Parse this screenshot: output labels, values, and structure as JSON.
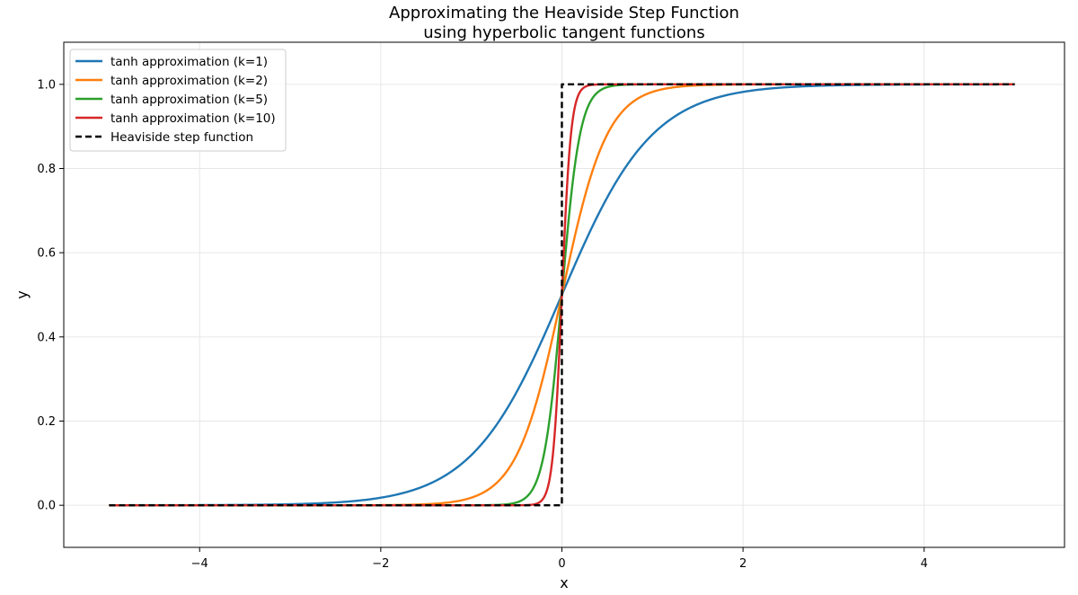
{
  "chart_data": {
    "type": "line",
    "title": [
      "Approximating the Heaviside Step Function",
      "using hyperbolic tangent functions"
    ],
    "xlabel": "x",
    "ylabel": "y",
    "xlim": [
      -5.5,
      5.55
    ],
    "ylim": [
      -0.1,
      1.1
    ],
    "x_range": [
      -5,
      5
    ],
    "xticks": [
      -4,
      -2,
      0,
      2,
      4
    ],
    "xtick_labels": [
      "−4",
      "−2",
      "0",
      "2",
      "4"
    ],
    "yticks": [
      0.0,
      0.2,
      0.4,
      0.6,
      0.8,
      1.0
    ],
    "ytick_labels": [
      "0.0",
      "0.2",
      "0.4",
      "0.6",
      "0.8",
      "1.0"
    ],
    "grid": true,
    "legend_position": "top-left",
    "series": [
      {
        "name": "tanh approximation (k=1)",
        "k": 1,
        "color": "#1f77b4",
        "style": "solid"
      },
      {
        "name": "tanh approximation (k=2)",
        "k": 2,
        "color": "#ff7f0e",
        "style": "solid"
      },
      {
        "name": "tanh approximation (k=5)",
        "k": 5,
        "color": "#2ca02c",
        "style": "solid"
      },
      {
        "name": "tanh approximation (k=10)",
        "k": 10,
        "color": "#d62728",
        "style": "solid"
      },
      {
        "name": "Heaviside step function",
        "color": "#000000",
        "style": "dashed",
        "points": [
          [
            -5,
            0
          ],
          [
            0,
            0
          ],
          [
            0,
            1
          ],
          [
            5,
            1
          ]
        ]
      }
    ]
  }
}
